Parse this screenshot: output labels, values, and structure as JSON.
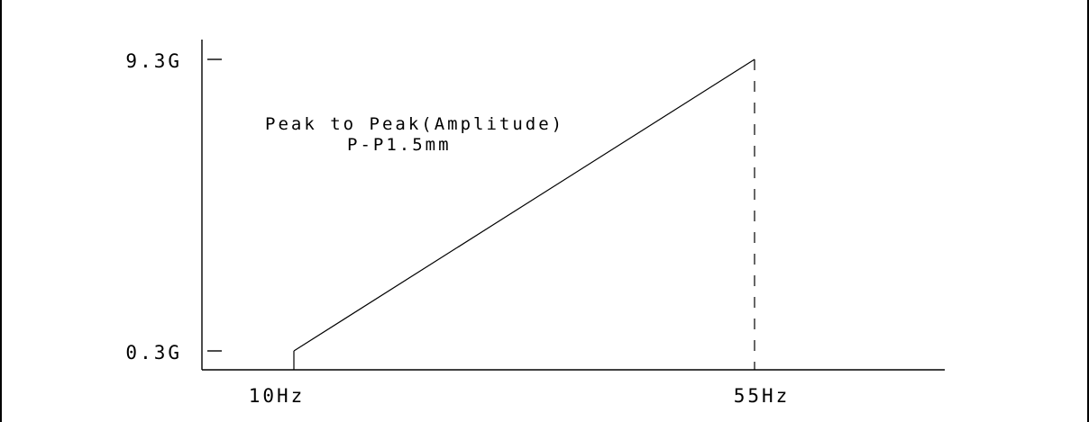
{
  "chart_data": {
    "type": "line",
    "title": "",
    "xlabel": "",
    "ylabel": "",
    "x_ticks": [
      "10Hz",
      "55Hz"
    ],
    "y_ticks": [
      "0.3G",
      "9.3G"
    ],
    "series": [
      {
        "x": [
          "10Hz",
          "55Hz"
        ],
        "y": [
          "0.3G",
          "9.3G"
        ]
      }
    ],
    "annotations": [
      "Peak to Peak(Amplitude)",
      "P-P1.5mm"
    ],
    "grid": false,
    "legend": "none"
  }
}
